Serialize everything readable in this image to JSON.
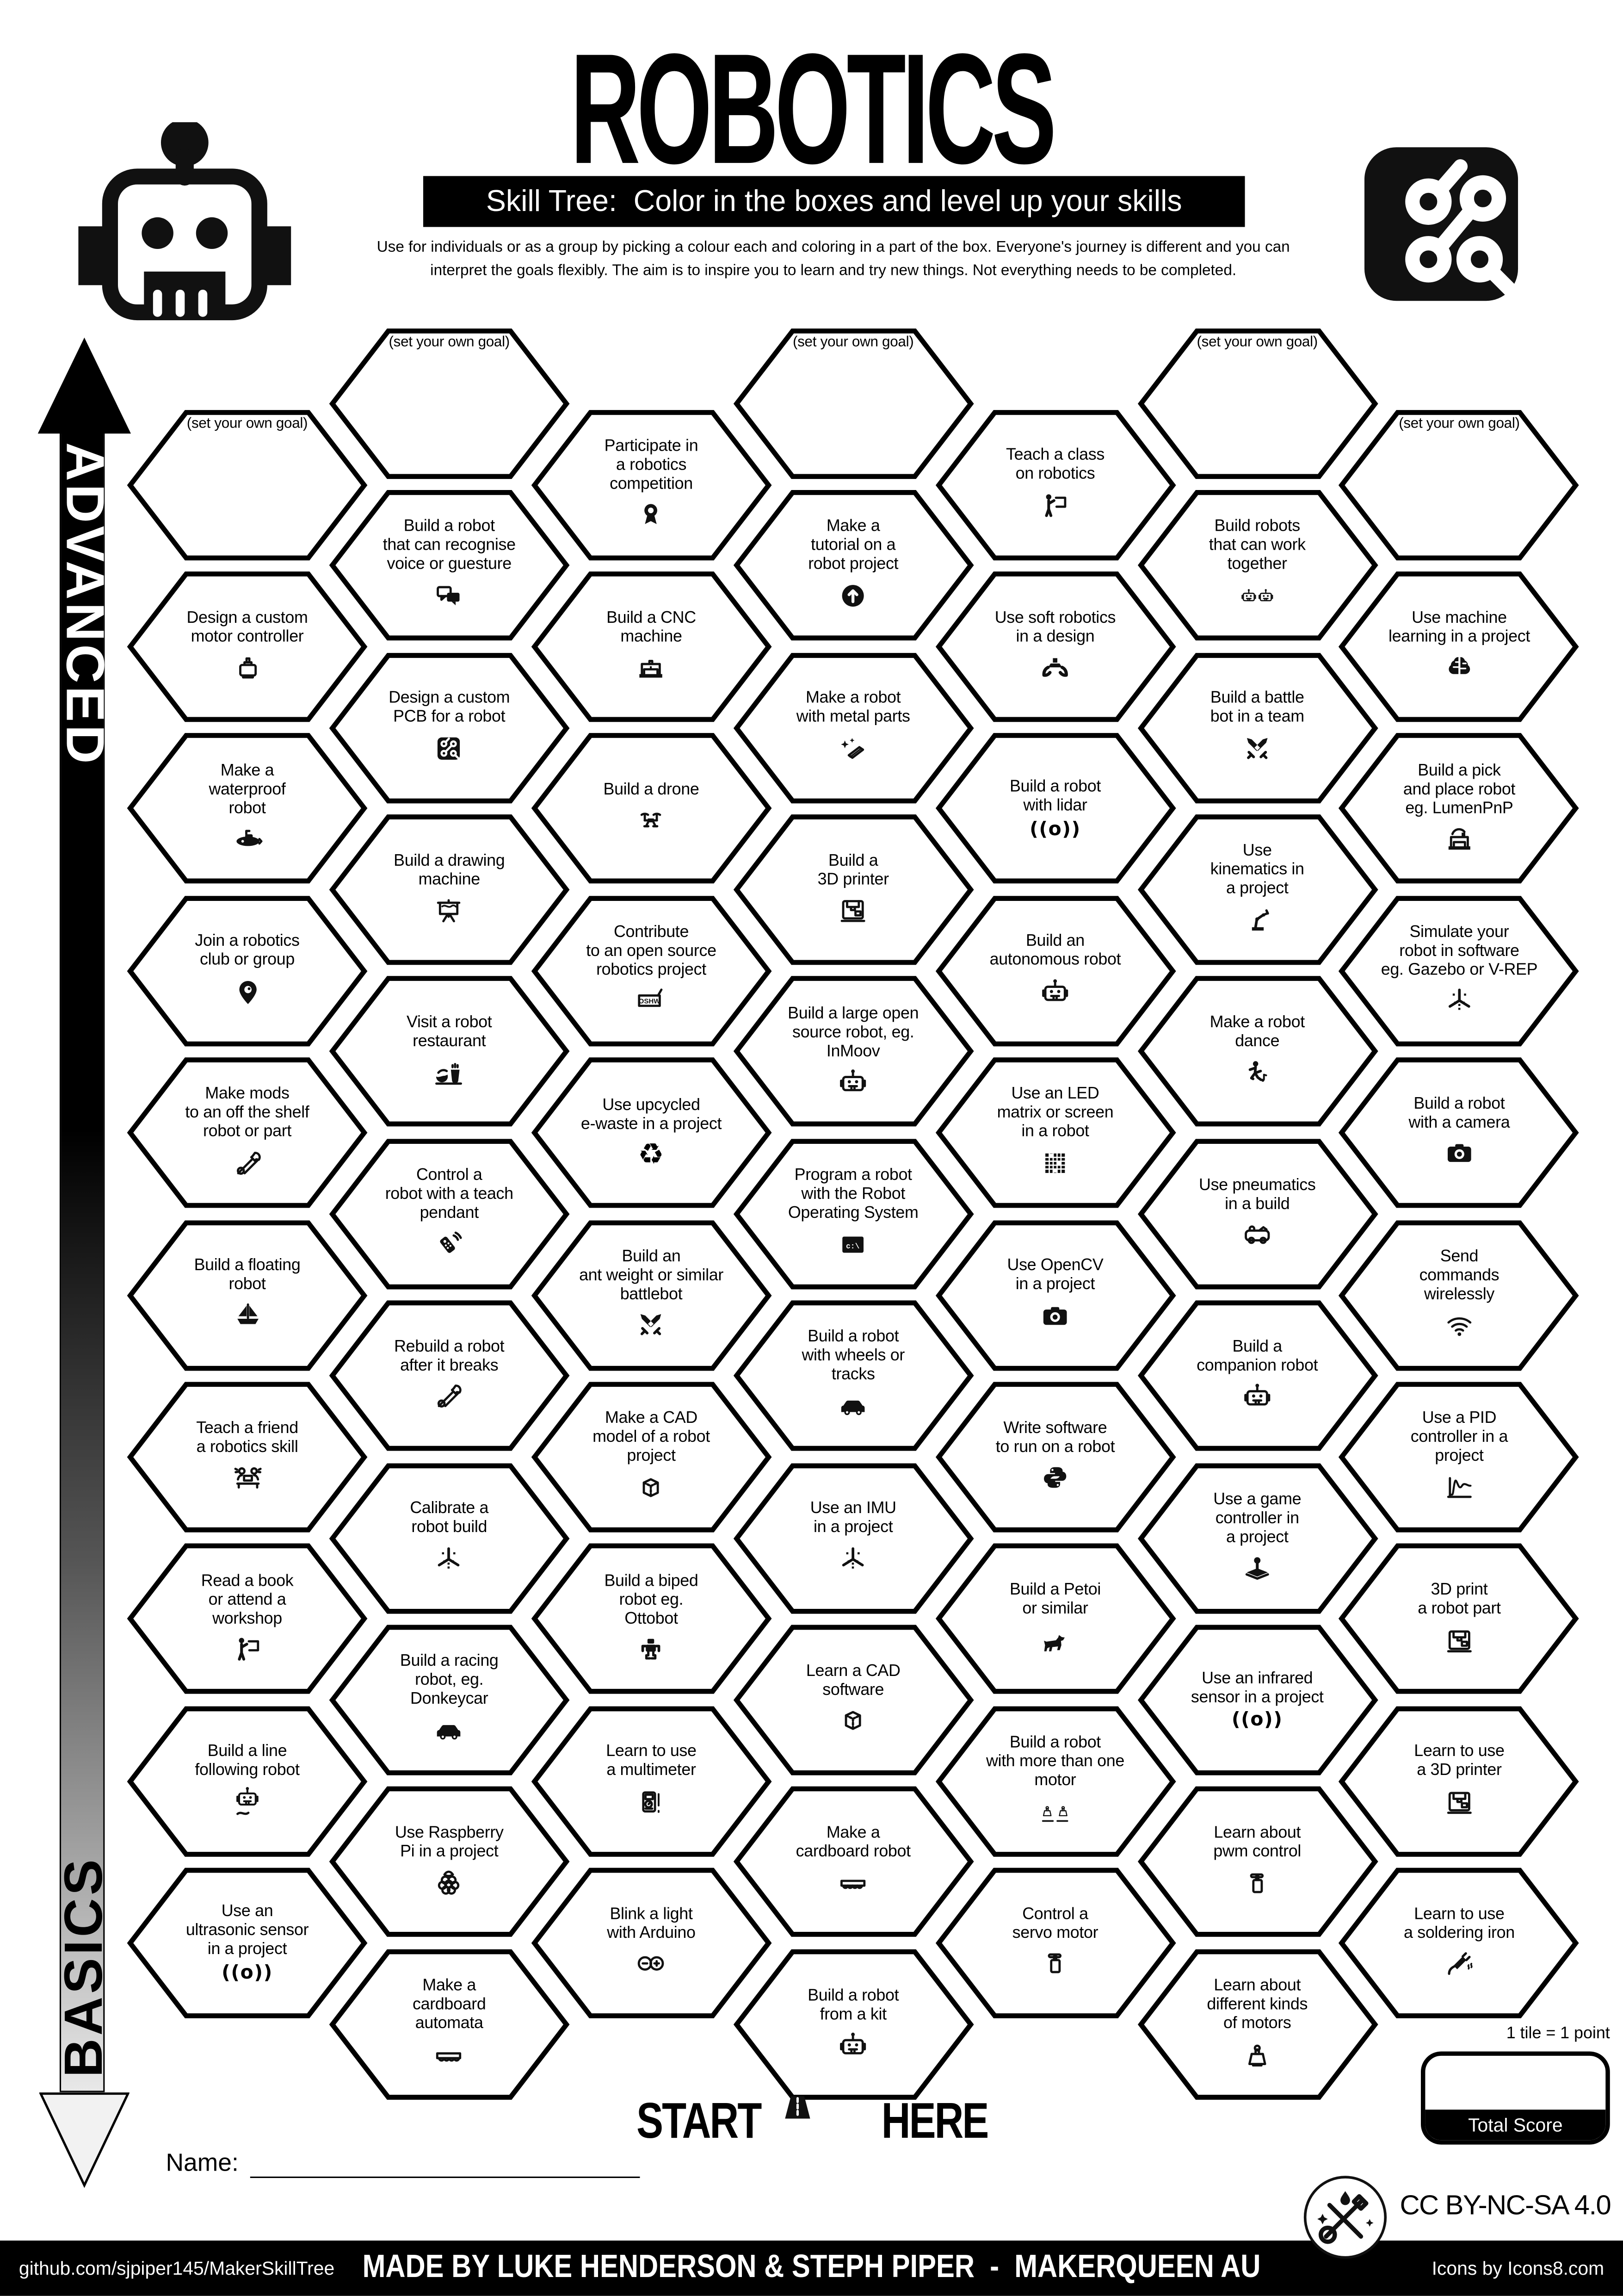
{
  "header": {
    "title": "ROBOTICS",
    "subtitle": "Skill Tree:  Color in the boxes and level up your skills",
    "description": "Use for individuals or as a group by picking a colour each and coloring in a part of the box.  Everyone's journey is different and you can\ninterpret the goals flexibly.  The aim is to inspire you to learn and try new things. Not everything needs to be completed."
  },
  "axis": {
    "top_label": "ADVANCED",
    "bottom_label": "BASICS"
  },
  "start": {
    "start_word": "START",
    "here_word": "HERE"
  },
  "name_field": {
    "label": "Name:"
  },
  "scoring": {
    "tile_note": "1 tile = 1 point",
    "total_label": "Total Score"
  },
  "license": "CC BY-NC-SA 4.0",
  "footer": {
    "left": "github.com/sjpiper145/MakerSkillTree",
    "center": "MADE BY LUKE HENDERSON & STEPH PIPER  -  MAKERQUEEN AU",
    "right": "Icons by Icons8.com"
  },
  "colors": {
    "ink": "#000000",
    "paper": "#ffffff"
  },
  "columns": [
    {
      "tiles": [
        {
          "label": "(set your own goal)",
          "goal": true,
          "icon": null
        },
        {
          "label": "Design a custom\nmotor controller",
          "icon": "motor-icon"
        },
        {
          "label": "Make a\nwaterproof\nrobot",
          "icon": "submarine-icon"
        },
        {
          "label": "Join a robotics\nclub or group",
          "icon": "location-pin-icon"
        },
        {
          "label": "Make mods\nto an off the shelf\nrobot or part",
          "icon": "tools-icon"
        },
        {
          "label": "Build a floating\nrobot",
          "icon": "sailboat-icon"
        },
        {
          "label": "Teach a friend\na robotics skill",
          "icon": "people-laptop-icon"
        },
        {
          "label": "Read a book\nor attend a\nworkshop",
          "icon": "person-presenting-icon"
        },
        {
          "label": "Build a line\nfollowing robot",
          "icon": "line-following-robot-icon"
        },
        {
          "label": "Use an\nultrasonic sensor\nin a project",
          "icon": "sensor-wave-icon"
        }
      ]
    },
    {
      "tiles": [
        {
          "label": "(set your own goal)",
          "goal": true,
          "icon": null
        },
        {
          "label": "Build a robot\nthat can recognise\nvoice or guesture",
          "icon": "speech-bubbles-icon"
        },
        {
          "label": "Design a custom\nPCB for a robot",
          "icon": "circuit-board-icon"
        },
        {
          "label": "Build a drawing\nmachine",
          "icon": "easel-icon"
        },
        {
          "label": "Visit a robot\nrestaurant",
          "icon": "robot-restaurant-icon"
        },
        {
          "label": "Control a\nrobot with a teach\npendant",
          "icon": "remote-control-icon"
        },
        {
          "label": "Rebuild a robot\nafter it breaks",
          "icon": "tools-icon"
        },
        {
          "label": "Calibrate a\nrobot build",
          "icon": "calibrate-axis-icon"
        },
        {
          "label": "Build a racing\nrobot, eg.\nDonkeycar",
          "icon": "car-icon"
        },
        {
          "label": "Use Raspberry\nPi in a project",
          "icon": "raspberry-pi-icon"
        },
        {
          "label": "Make a\ncardboard\nautomata",
          "icon": "cardboard-automata-icon"
        }
      ]
    },
    {
      "tiles": [
        {
          "label": "Participate in\na robotics\ncompetition",
          "icon": "award-ribbon-icon"
        },
        {
          "label": "Build a CNC\nmachine",
          "icon": "cnc-machine-icon"
        },
        {
          "label": "Build a drone",
          "icon": "drone-icon"
        },
        {
          "label": "Contribute\nto an open source\nrobotics project",
          "icon": "oshw-icon"
        },
        {
          "label": "Use upcycled\ne-waste in a project",
          "icon": "recycle-icon"
        },
        {
          "label": "Build an\nant weight or similar\nbattlebot",
          "icon": "crossed-swords-icon"
        },
        {
          "label": "Make a CAD\nmodel of a robot\nproject",
          "icon": "cad-cube-icon"
        },
        {
          "label": "Build a biped\nrobot eg.\nOttobot",
          "icon": "biped-robot-icon"
        },
        {
          "label": "Learn to use\na multimeter",
          "icon": "multimeter-icon"
        },
        {
          "label": "Blink a light\nwith Arduino",
          "icon": "arduino-icon"
        }
      ]
    },
    {
      "tiles": [
        {
          "label": "(set your own goal)",
          "goal": true,
          "icon": null
        },
        {
          "label": "Make a\ntutorial on a\nrobot project",
          "icon": "up-arrow-icon"
        },
        {
          "label": "Make a robot\nwith metal parts",
          "icon": "metal-parts-icon"
        },
        {
          "label": "Build a\n3D printer",
          "icon": "printer-3d-icon"
        },
        {
          "label": "Build a large open\nsource robot, eg.\nInMoov",
          "icon": "robot-icon"
        },
        {
          "label": "Program a robot\nwith the Robot\nOperating System",
          "icon": "terminal-icon"
        },
        {
          "label": "Build a robot\nwith wheels or\ntracks",
          "icon": "car-icon"
        },
        {
          "label": "Use an IMU\nin a project",
          "icon": "calibrate-axis-icon"
        },
        {
          "label": "Learn a CAD\nsoftware",
          "icon": "cad-cube-icon"
        },
        {
          "label": "Make a\ncardboard robot",
          "icon": "cardboard-robot-icon"
        },
        {
          "label": "Build a robot\nfrom a kit",
          "icon": "robot-icon"
        }
      ]
    },
    {
      "tiles": [
        {
          "label": "Teach a class\non robotics",
          "icon": "person-presenting-icon"
        },
        {
          "label": "Use soft robotics\nin a design",
          "icon": "gripper-icon"
        },
        {
          "label": "Build a robot\nwith lidar",
          "icon": "sensor-wave-icon"
        },
        {
          "label": "Build an\nautonomous robot",
          "icon": "robot-icon"
        },
        {
          "label": "Use an LED\nmatrix or screen\nin a robot",
          "icon": "led-matrix-icon"
        },
        {
          "label": "Use OpenCV\nin a project",
          "icon": "camera-icon"
        },
        {
          "label": "Write software\nto run on a robot",
          "icon": "python-icon"
        },
        {
          "label": "Build a Petoi\nor similar",
          "icon": "dog-icon"
        },
        {
          "label": "Build a robot\nwith more than one\nmotor",
          "icon": "two-motors-icon"
        },
        {
          "label": "Control a\nservo motor",
          "icon": "servo-icon"
        }
      ]
    },
    {
      "tiles": [
        {
          "label": "(set your own goal)",
          "goal": true,
          "icon": null
        },
        {
          "label": "Build robots\nthat can work\ntogether",
          "icon": "two-robots-icon"
        },
        {
          "label": "Build a battle\nbot in a team",
          "icon": "crossed-swords-icon"
        },
        {
          "label": "Use\nkinematics in\na project",
          "icon": "robot-arm-icon"
        },
        {
          "label": "Make a robot\ndance",
          "icon": "dancer-icon"
        },
        {
          "label": "Use pneumatics\nin a build",
          "icon": "pneumatics-icon"
        },
        {
          "label": "Build a\ncompanion robot",
          "icon": "robot-icon"
        },
        {
          "label": "Use a game\ncontroller in\na project",
          "icon": "joystick-icon"
        },
        {
          "label": "Use an infrared\nsensor in a project",
          "icon": "sensor-wave-icon"
        },
        {
          "label": "Learn about\npwm control",
          "icon": "servo-icon"
        },
        {
          "label": "Learn about\ndifferent kinds\nof motors",
          "icon": "stepper-motor-icon"
        }
      ]
    },
    {
      "tiles": [
        {
          "label": "(set your own goal)",
          "goal": true,
          "icon": null
        },
        {
          "label": "Use machine\nlearning in a project",
          "icon": "brain-icon"
        },
        {
          "label": "Build a pick\nand place robot\neg. LumenPnP",
          "icon": "pick-place-icon"
        },
        {
          "label": "Simulate your\nrobot in software\neg. Gazebo or V-REP",
          "icon": "calibrate-axis-icon"
        },
        {
          "label": "Build a robot\nwith a camera",
          "icon": "camera-icon"
        },
        {
          "label": "Send\ncommands\nwirelessly",
          "icon": "wifi-icon"
        },
        {
          "label": "Use a PID\ncontroller in a\nproject",
          "icon": "pid-curve-icon"
        },
        {
          "label": "3D print\na robot part",
          "icon": "printer-3d-icon"
        },
        {
          "label": "Learn to use\na 3D printer",
          "icon": "printer-3d-icon"
        },
        {
          "label": "Learn to use\na soldering iron",
          "icon": "soldering-iron-icon"
        }
      ]
    }
  ]
}
